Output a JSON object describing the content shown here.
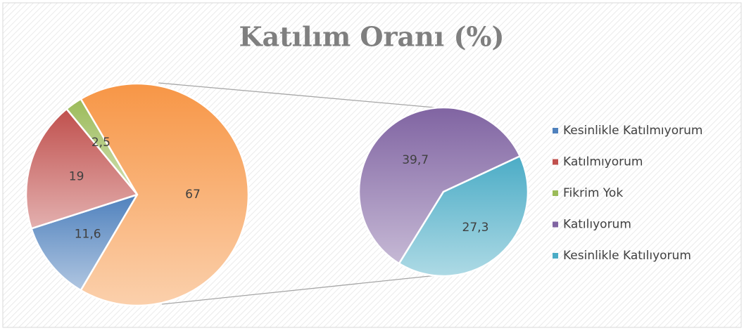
{
  "chart_data": [
    {
      "type": "pie",
      "title": "Katılım Oranı (%)",
      "categories": [
        "Kesinlikle Katılmıyorum",
        "Katılmıyorum",
        "Fikrim Yok",
        null
      ],
      "values": [
        11.6,
        19,
        2.5,
        67
      ],
      "value_labels": [
        "11,6",
        "19",
        "2,5",
        "67"
      ],
      "colors": [
        "#4f81bd",
        "#c0504d",
        "#9bbb59",
        "#f79646"
      ],
      "legend": "right"
    },
    {
      "type": "pie",
      "categories": [
        "Katılıyorum",
        "Kesinlikle Katılıyorum"
      ],
      "values": [
        39.7,
        27.3
      ],
      "value_labels": [
        "39,7",
        "27,3"
      ],
      "colors": [
        "#8064a2",
        "#4bacc6"
      ]
    }
  ]
}
